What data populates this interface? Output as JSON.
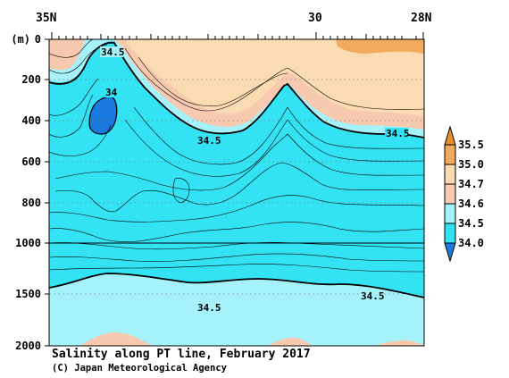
{
  "chart_data": {
    "type": "contour",
    "title": "Salinity along PT line, February 2017",
    "credit": "(C) Japan Meteorological Agency",
    "ylabel": "(m)",
    "x_ticks": [
      {
        "label": "35N",
        "lat": 35
      },
      {
        "label": "30",
        "lat": 30
      },
      {
        "label": "28N",
        "lat": 28
      }
    ],
    "xlim": [
      35,
      28
    ],
    "y_ticks_upper": [
      0,
      200,
      400,
      600,
      800,
      1000
    ],
    "y_ticks_lower": [
      1500,
      2000
    ],
    "ylim_upper": [
      0,
      1000
    ],
    "ylim_lower": [
      1000,
      2000
    ],
    "legend_levels": [
      "35.5",
      "35.0",
      "34.7",
      "34.6",
      "34.5",
      "34.0"
    ],
    "colors": {
      "below_34.0": "#1a7ae0",
      "34.0_34.5": "#33e3f3",
      "34.5_34.6": "#a5f2fa",
      "34.6_34.7": "#f7c9ae",
      "34.7_35.0": "#fbdbb1",
      "35.0_35.5": "#f1aa5e",
      "above_35.5": "#e88f30"
    },
    "contour_labels": [
      {
        "text": "34.5",
        "lat": 34.0,
        "depth": 75
      },
      {
        "text": "34",
        "lat": 34.05,
        "depth": 260
      },
      {
        "text": "34.5",
        "lat": 31.9,
        "depth": 520
      },
      {
        "text": "34.5",
        "lat": 28.5,
        "depth": 455
      },
      {
        "text": "34.5",
        "lat": 32.4,
        "depth": 1630
      },
      {
        "text": "34.5",
        "lat": 29.3,
        "depth": 1500
      }
    ]
  }
}
